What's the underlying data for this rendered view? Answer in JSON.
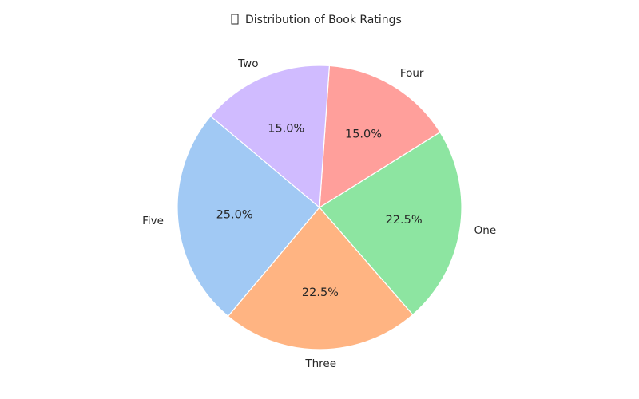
{
  "chart_data": {
    "type": "pie",
    "title": "Distribution of Book Ratings",
    "title_icon": "missing-glyph-box",
    "categories": [
      "Five",
      "Three",
      "One",
      "Four",
      "Two"
    ],
    "values": [
      25.0,
      22.5,
      22.5,
      15.0,
      15.0
    ],
    "percent_labels": [
      "25.0%",
      "22.5%",
      "22.5%",
      "15.0%",
      "15.0%"
    ],
    "colors": [
      "#a1c9f4",
      "#ffb482",
      "#8de5a1",
      "#ff9f9b",
      "#d0bbff"
    ],
    "start_angle_deg": 140,
    "direction": "counterclockwise",
    "edge_color": "#ffffff",
    "legend": "none"
  }
}
